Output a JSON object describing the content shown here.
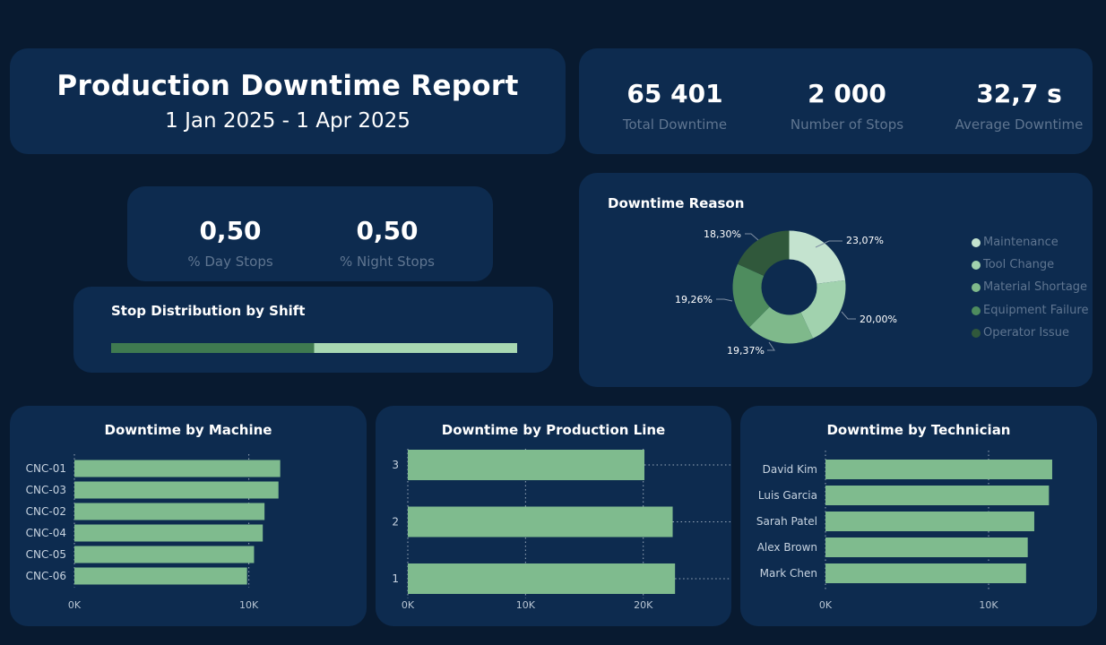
{
  "header": {
    "title": "Production Downtime Report",
    "date_range": "1 Jan 2025 - 1 Apr 2025"
  },
  "kpis": [
    {
      "value": "65 401",
      "label": "Total Downtime"
    },
    {
      "value": "2 000",
      "label": "Number of Stops"
    },
    {
      "value": "32,7 s",
      "label": "Average Downtime"
    }
  ],
  "shift_kpis": [
    {
      "value": "0,50",
      "label": "% Day Stops"
    },
    {
      "value": "0,50",
      "label": "% Night Stops"
    }
  ],
  "colors": {
    "bar": "#7fbb8e",
    "bg": "#081a30",
    "card": "#0d2b4f",
    "day": "#3f7a50",
    "night": "#a8d8b2"
  },
  "chart_data": [
    {
      "type": "bar",
      "orientation": "horizontal",
      "stacked": true,
      "title": "Stop Distribution by Shift",
      "series": [
        {
          "values": [
            0.5
          ],
          "color": "#3f7a50"
        },
        {
          "values": [
            0.5
          ],
          "color": "#a8d8b2"
        }
      ]
    },
    {
      "type": "pie",
      "donut": true,
      "title": "Downtime Reason",
      "legend_position": "right",
      "labels": [
        "Maintenance",
        "Tool Change",
        "Material Shortage",
        "Equipment Failure",
        "Operator Issue"
      ],
      "values": [
        23.07,
        20.0,
        19.37,
        19.26,
        18.3
      ],
      "value_labels": [
        "23,07%",
        "20,00%",
        "19,37%",
        "19,26%",
        "18,30%"
      ],
      "colors": [
        "#c4e3cf",
        "#a1d2ae",
        "#7fb98b",
        "#4e8c5e",
        "#30583b"
      ]
    },
    {
      "type": "bar",
      "orientation": "horizontal",
      "title": "Downtime by Machine",
      "categories": [
        "CNC-01",
        "CNC-03",
        "CNC-02",
        "CNC-04",
        "CNC-05",
        "CNC-06"
      ],
      "values": [
        11800,
        11700,
        10900,
        10800,
        10300,
        9900
      ],
      "xlim": [
        0,
        13000
      ],
      "xticks": [
        0,
        10000
      ],
      "xtick_labels": [
        "0K",
        "10K"
      ],
      "grid": true
    },
    {
      "type": "bar",
      "orientation": "horizontal",
      "title": "Downtime by Production Line",
      "categories": [
        "3",
        "2",
        "1"
      ],
      "values": [
        20100,
        22500,
        22700
      ],
      "xlim": [
        0,
        25200
      ],
      "xticks": [
        0,
        10000,
        20000
      ],
      "xtick_labels": [
        "0K",
        "10K",
        "20K"
      ],
      "grid": true
    },
    {
      "type": "bar",
      "orientation": "horizontal",
      "title": "Downtime by Technician",
      "categories": [
        "David Kim",
        "Luis Garcia",
        "Sarah Patel",
        "Alex Brown",
        "Mark Chen"
      ],
      "values": [
        13900,
        13700,
        12800,
        12400,
        12300
      ],
      "xlim": [
        0,
        15000
      ],
      "xticks": [
        0,
        10000
      ],
      "xtick_labels": [
        "0K",
        "10K"
      ],
      "grid": true
    }
  ]
}
